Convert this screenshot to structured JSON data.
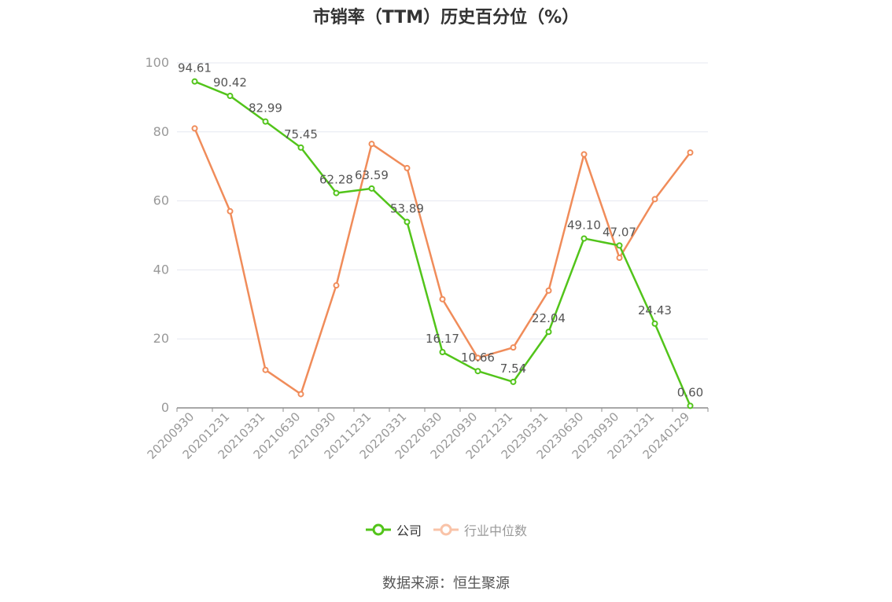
{
  "chart_data": {
    "type": "line",
    "title": "市销率（TTM）历史百分位（%）",
    "xlabel": "",
    "ylabel": "",
    "ylim": [
      0,
      100
    ],
    "yticks": [
      0,
      20,
      40,
      60,
      80,
      100
    ],
    "grid": true,
    "legend_position": "bottom",
    "categories": [
      "20200930",
      "20201231",
      "20210331",
      "20210630",
      "20210930",
      "20211231",
      "20220331",
      "20220630",
      "20220930",
      "20221231",
      "20230331",
      "20230630",
      "20230930",
      "20231231",
      "20240129"
    ],
    "series": [
      {
        "name": "公司",
        "color": "#52c41a",
        "values": [
          94.61,
          90.42,
          82.99,
          75.45,
          62.28,
          63.59,
          53.89,
          16.17,
          10.66,
          7.54,
          22.04,
          49.1,
          47.07,
          24.43,
          0.6
        ],
        "labels": [
          "94.61",
          "90.42",
          "82.99",
          "75.45",
          "62.28",
          "63.59",
          "53.89",
          "16.17",
          "10.66",
          "7.54",
          "22.04",
          "49.10",
          "47.07",
          "24.43",
          "0.60"
        ],
        "show_labels": true
      },
      {
        "name": "行业中位数",
        "color": "#f08c5a",
        "values": [
          81,
          57,
          11,
          4,
          35.5,
          76.5,
          69.5,
          31.5,
          14.5,
          17.5,
          34,
          73.5,
          43.5,
          60.5,
          74
        ],
        "show_labels": false
      }
    ]
  },
  "source": "数据来源：恒生聚源"
}
